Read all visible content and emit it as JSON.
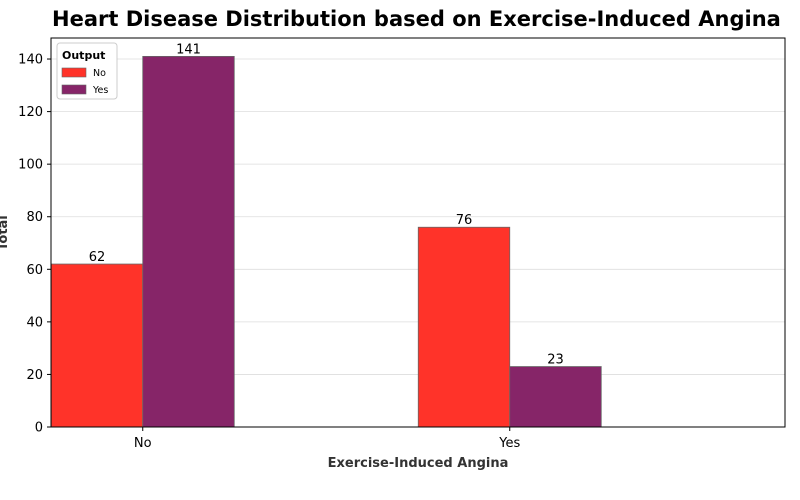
{
  "chart_data": {
    "type": "bar",
    "title": "Heart Disease Distribution based on Exercise-Induced Angina",
    "xlabel": "Exercise-Induced Angina",
    "ylabel": "Total",
    "categories": [
      "No",
      "Yes"
    ],
    "series": [
      {
        "name": "No",
        "values": [
          62,
          76
        ],
        "color": "#ff3329"
      },
      {
        "name": "Yes",
        "values": [
          141,
          23
        ],
        "color": "#862568"
      }
    ],
    "ylim": [
      0,
      148
    ],
    "yticks": [
      0,
      20,
      40,
      60,
      80,
      100,
      120,
      140
    ],
    "legend": {
      "title": "Output",
      "placement": "top-left"
    },
    "grid": {
      "axis": "y",
      "color": "#dddddd"
    }
  }
}
